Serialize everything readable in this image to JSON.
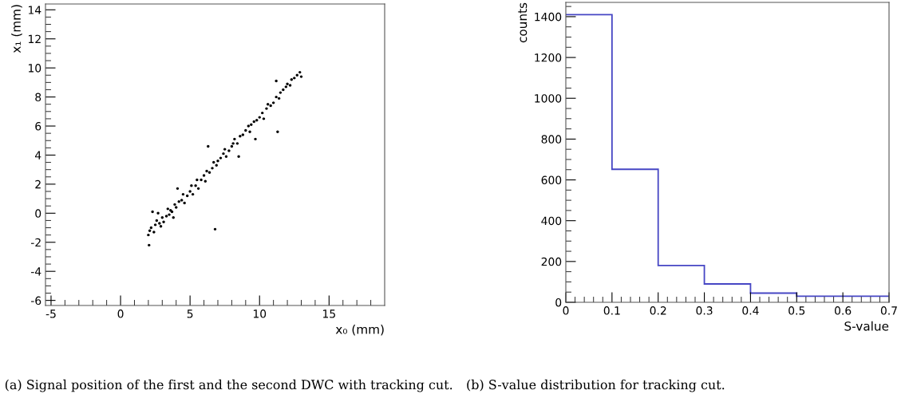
{
  "chart_data": [
    {
      "type": "scatter",
      "xlabel": "x₀ (mm)",
      "ylabel": "x₁ (mm)",
      "marker": "circle",
      "grid": false,
      "legend": false,
      "annotations": [
        "(a) Signal position of the first and the second DWC with tracking cut."
      ],
      "xlim": [
        -5.4,
        19.0
      ],
      "ylim": [
        -6.35,
        14.4
      ],
      "xticks": [
        -5,
        {
          "value": -4,
          "label": null
        },
        {
          "value": -3,
          "label": null
        },
        {
          "value": -2,
          "label": null
        },
        {
          "value": -1,
          "label": null
        },
        0,
        {
          "value": 1,
          "label": null
        },
        {
          "value": 2,
          "label": null
        },
        {
          "value": 3,
          "label": null
        },
        {
          "value": 4,
          "label": null
        },
        5,
        {
          "value": 6,
          "label": null
        },
        {
          "value": 7,
          "label": null
        },
        {
          "value": 8,
          "label": null
        },
        {
          "value": 9,
          "label": null
        },
        10,
        {
          "value": 11,
          "label": null
        },
        {
          "value": 12,
          "label": null
        },
        {
          "value": 13,
          "label": null
        },
        {
          "value": 14,
          "label": null
        },
        15,
        {
          "value": 16,
          "label": null
        },
        {
          "value": 17,
          "label": null
        },
        {
          "value": 18,
          "label": null
        }
      ],
      "yticks": [
        -6,
        {
          "value": -5.5,
          "label": null
        },
        {
          "value": -5,
          "label": null
        },
        {
          "value": -4.5,
          "label": null
        },
        -4,
        {
          "value": -3.5,
          "label": null
        },
        {
          "value": -3,
          "label": null
        },
        {
          "value": -2.5,
          "label": null
        },
        -2,
        {
          "value": -1.5,
          "label": null
        },
        {
          "value": -1,
          "label": null
        },
        {
          "value": -0.5,
          "label": null
        },
        0,
        {
          "value": 0.5,
          "label": null
        },
        {
          "value": 1,
          "label": null
        },
        {
          "value": 1.5,
          "label": null
        },
        2,
        {
          "value": 2.5,
          "label": null
        },
        {
          "value": 3,
          "label": null
        },
        {
          "value": 3.5,
          "label": null
        },
        4,
        {
          "value": 4.5,
          "label": null
        },
        {
          "value": 5,
          "label": null
        },
        {
          "value": 5.5,
          "label": null
        },
        6,
        {
          "value": 6.5,
          "label": null
        },
        {
          "value": 7,
          "label": null
        },
        {
          "value": 7.5,
          "label": null
        },
        8,
        {
          "value": 8.5,
          "label": null
        },
        {
          "value": 9,
          "label": null
        },
        {
          "value": 9.5,
          "label": null
        },
        10,
        {
          "value": 10.5,
          "label": null
        },
        {
          "value": 11,
          "label": null
        },
        {
          "value": 11.5,
          "label": null
        },
        12,
        {
          "value": 12.5,
          "label": null
        },
        {
          "value": 13,
          "label": null
        },
        {
          "value": 13.5,
          "label": null
        },
        14
      ],
      "series": [
        {
          "color": "#000000",
          "x": [
            2.0,
            2.05,
            2.1,
            2.2,
            2.3,
            2.4,
            2.5,
            2.6,
            2.7,
            2.8,
            2.9,
            3.0,
            3.1,
            3.3,
            3.4,
            3.5,
            3.6,
            3.7,
            3.8,
            3.9,
            4.0,
            4.1,
            4.2,
            4.4,
            4.5,
            4.6,
            4.8,
            5.0,
            5.1,
            5.2,
            5.4,
            5.5,
            5.6,
            5.8,
            6.0,
            6.1,
            6.2,
            6.3,
            6.4,
            6.6,
            6.7,
            6.8,
            6.9,
            7.0,
            7.2,
            7.4,
            7.5,
            7.6,
            7.8,
            8.0,
            8.1,
            8.2,
            8.4,
            8.5,
            8.6,
            8.8,
            9.0,
            9.2,
            9.3,
            9.4,
            9.6,
            9.7,
            9.8,
            10.0,
            10.2,
            10.3,
            10.5,
            10.6,
            10.8,
            11.0,
            11.2,
            11.2,
            11.3,
            11.4,
            11.5,
            11.7,
            11.9,
            12.0,
            12.2,
            12.3,
            12.5,
            12.7,
            12.9,
            13.0
          ],
          "values": [
            -1.5,
            -2.2,
            -1.2,
            -1.0,
            0.1,
            -1.3,
            -0.8,
            -0.5,
            0.0,
            -0.7,
            -0.9,
            -0.3,
            -0.6,
            -0.2,
            0.3,
            -0.1,
            0.2,
            0.1,
            -0.3,
            0.6,
            0.4,
            1.7,
            0.8,
            0.9,
            1.3,
            0.7,
            1.2,
            1.5,
            1.9,
            1.3,
            1.9,
            2.3,
            1.7,
            2.3,
            2.6,
            2.2,
            2.9,
            4.6,
            2.8,
            3.1,
            3.5,
            -1.1,
            3.3,
            3.6,
            3.8,
            4.1,
            4.4,
            3.9,
            4.3,
            4.6,
            4.8,
            5.1,
            4.8,
            3.9,
            5.3,
            5.4,
            5.7,
            6.0,
            5.6,
            6.1,
            6.3,
            5.1,
            6.4,
            6.6,
            6.9,
            6.5,
            7.2,
            7.5,
            7.4,
            7.6,
            8.0,
            9.1,
            5.6,
            7.9,
            8.3,
            8.5,
            8.7,
            8.9,
            8.8,
            9.2,
            9.3,
            9.5,
            9.7,
            9.4
          ]
        }
      ]
    },
    {
      "type": "histogram",
      "xlabel": "S-value",
      "ylabel": "counts",
      "grid": false,
      "legend": false,
      "annotations": [
        "(b) S-value distribution for tracking cut."
      ],
      "bins": [
        0,
        0.1,
        0.2,
        0.3,
        0.4,
        0.5,
        0.7
      ],
      "values": [
        1410,
        652,
        180,
        90,
        45,
        30
      ],
      "color": "#4646c4",
      "xlim": [
        0,
        0.7
      ],
      "ylim": [
        0,
        1470
      ],
      "xticks": [
        0,
        {
          "value": 0.02,
          "label": null
        },
        {
          "value": 0.04,
          "label": null
        },
        {
          "value": 0.06,
          "label": null
        },
        {
          "value": 0.08,
          "label": null
        },
        0.1,
        {
          "value": 0.12,
          "label": null
        },
        {
          "value": 0.14,
          "label": null
        },
        {
          "value": 0.16,
          "label": null
        },
        {
          "value": 0.18,
          "label": null
        },
        0.2,
        {
          "value": 0.22,
          "label": null
        },
        {
          "value": 0.24,
          "label": null
        },
        {
          "value": 0.26,
          "label": null
        },
        {
          "value": 0.28,
          "label": null
        },
        0.3,
        {
          "value": 0.32,
          "label": null
        },
        {
          "value": 0.34,
          "label": null
        },
        {
          "value": 0.36,
          "label": null
        },
        {
          "value": 0.38,
          "label": null
        },
        0.4,
        {
          "value": 0.42,
          "label": null
        },
        {
          "value": 0.44,
          "label": null
        },
        {
          "value": 0.46,
          "label": null
        },
        {
          "value": 0.48,
          "label": null
        },
        0.5,
        {
          "value": 0.52,
          "label": null
        },
        {
          "value": 0.54,
          "label": null
        },
        {
          "value": 0.56,
          "label": null
        },
        {
          "value": 0.58,
          "label": null
        },
        0.6,
        {
          "value": 0.62,
          "label": null
        },
        {
          "value": 0.64,
          "label": null
        },
        {
          "value": 0.66,
          "label": null
        },
        {
          "value": 0.68,
          "label": null
        },
        0.7
      ],
      "yticks": [
        0,
        {
          "value": 50,
          "label": null
        },
        {
          "value": 100,
          "label": null
        },
        {
          "value": 150,
          "label": null
        },
        200,
        {
          "value": 250,
          "label": null
        },
        {
          "value": 300,
          "label": null
        },
        {
          "value": 350,
          "label": null
        },
        400,
        {
          "value": 450,
          "label": null
        },
        {
          "value": 500,
          "label": null
        },
        {
          "value": 550,
          "label": null
        },
        600,
        {
          "value": 650,
          "label": null
        },
        {
          "value": 700,
          "label": null
        },
        {
          "value": 750,
          "label": null
        },
        800,
        {
          "value": 850,
          "label": null
        },
        {
          "value": 900,
          "label": null
        },
        {
          "value": 950,
          "label": null
        },
        1000,
        {
          "value": 1050,
          "label": null
        },
        {
          "value": 1100,
          "label": null
        },
        {
          "value": 1150,
          "label": null
        },
        1200,
        {
          "value": 1250,
          "label": null
        },
        {
          "value": 1300,
          "label": null
        },
        {
          "value": 1350,
          "label": null
        },
        1400,
        {
          "value": 1450,
          "label": null
        }
      ]
    }
  ]
}
